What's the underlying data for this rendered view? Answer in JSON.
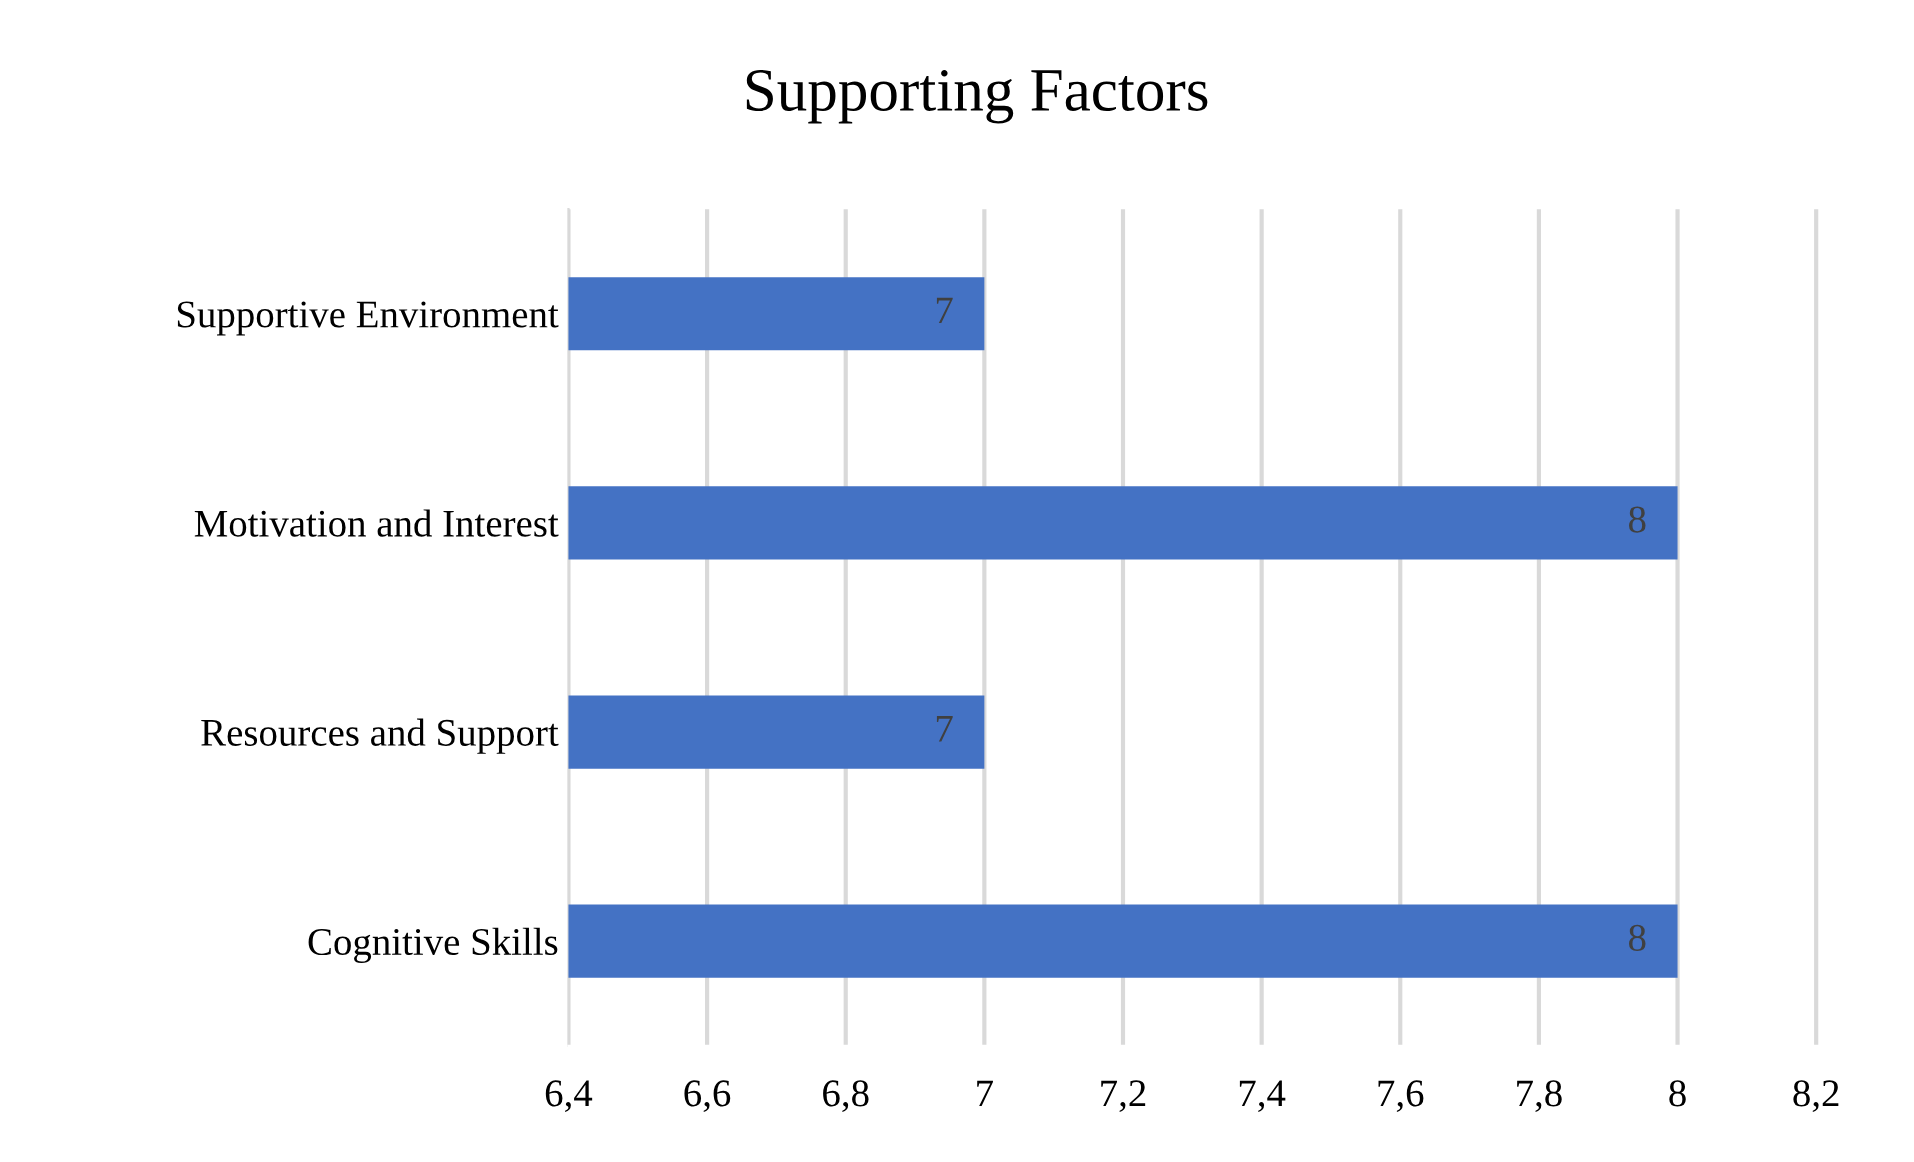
{
  "chart_data": {
    "type": "bar",
    "orientation": "horizontal",
    "title": "Supporting Factors",
    "categories": [
      "Supportive Environment",
      "Motivation and Interest",
      "Resources and Support",
      "Cognitive Skills"
    ],
    "values": [
      7,
      8,
      7,
      8
    ],
    "color": "#4472c4",
    "data_labels": true,
    "xlim": [
      6.4,
      8.25
    ],
    "xticks": [
      {
        "value": 6.4,
        "label": "6,4"
      },
      {
        "value": 6.6,
        "label": "6,6"
      },
      {
        "value": 6.8,
        "label": "6,8"
      },
      7,
      {
        "value": 7.2,
        "label": "7,2"
      },
      {
        "value": 7.4,
        "label": "7,4"
      },
      {
        "value": 7.6,
        "label": "7,6"
      },
      {
        "value": 7.8,
        "label": "7,8"
      },
      8,
      {
        "value": 8.2,
        "label": "8,2"
      }
    ],
    "grid": "x",
    "legend": false
  }
}
